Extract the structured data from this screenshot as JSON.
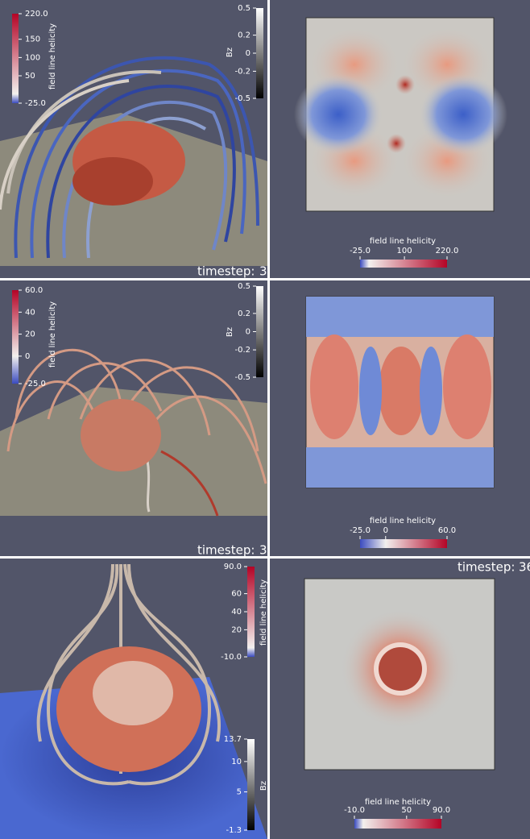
{
  "rows": [
    {
      "left": {
        "helicity": {
          "label": "field line helicity",
          "ticks": [
            "220.0",
            "150",
            "100",
            "50",
            "-25.0"
          ]
        },
        "bz": {
          "label": "Bz",
          "ticks": [
            "0.5",
            "0.2",
            "0",
            "-0.2",
            "-0.5"
          ]
        },
        "timestep": {
          "label": "timestep:",
          "value": "3"
        }
      },
      "right": {
        "helicity": {
          "label": "field line helicity",
          "ticks": [
            "-25.0",
            "100",
            "220.0"
          ]
        }
      }
    },
    {
      "left": {
        "helicity": {
          "label": "field line helicity",
          "ticks": [
            "60.0",
            "40",
            "20",
            "0",
            "-25.0"
          ]
        },
        "bz": {
          "label": "Bz",
          "ticks": [
            "0.5",
            "0.2",
            "0",
            "-0.2",
            "-0.5"
          ]
        },
        "timestep": {
          "label": "timestep:",
          "value": "3"
        }
      },
      "right": {
        "helicity": {
          "label": "field line helicity",
          "ticks": [
            "-25.0",
            "0",
            "60.0"
          ]
        }
      }
    },
    {
      "left": {
        "helicity": {
          "label": "field line helicity",
          "ticks": [
            "90.0",
            "60",
            "40",
            "20",
            "-10.0"
          ]
        },
        "bz": {
          "label": "Bz",
          "ticks": [
            "13.7",
            "10",
            "5",
            "-1.3"
          ]
        }
      },
      "right": {
        "helicity": {
          "label": "field line helicity",
          "ticks": [
            "-10.0",
            "50",
            "90.0"
          ]
        },
        "timestep": {
          "label": "timestep:",
          "value": "36"
        }
      }
    }
  ]
}
